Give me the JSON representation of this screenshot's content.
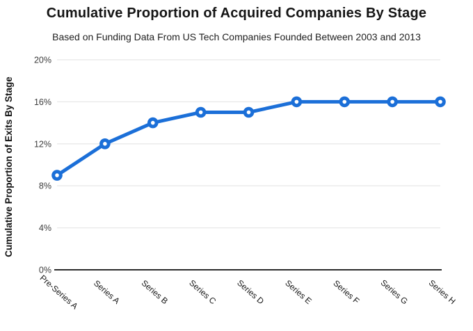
{
  "chart_data": {
    "type": "line",
    "title": "Cumulative Proportion of Acquired Companies By Stage",
    "subtitle": "Based on Funding Data From US Tech Companies Founded Between 2003 and 2013",
    "categories": [
      "Pre-Series A",
      "Series A",
      "Series B",
      "Series C",
      "Series D",
      "Series E",
      "Series F",
      "Series G",
      "Series H"
    ],
    "values": [
      9,
      12,
      14,
      15,
      15,
      16,
      16,
      16,
      16
    ],
    "xlabel": "",
    "ylabel": "Cumulative Proportion of Exits By Stage",
    "ylim": [
      0,
      20
    ],
    "ytick_step": 4,
    "ytick_labels": [
      "0%",
      "4%",
      "8%",
      "12%",
      "16%",
      "20%"
    ],
    "grid": true,
    "legend_position": "none",
    "marker_style": "open-circle",
    "colors": {
      "line": "#1b6fd8",
      "marker_fill": "#ffffff",
      "gridline": "#e8e8e8",
      "axis_line": "#2b2b2b",
      "tick_label": "#3d3d3d",
      "x_label": "#1a1a1a",
      "axis_title": "#111111",
      "title": "#141414",
      "subtitle": "#1f1f1f"
    }
  }
}
